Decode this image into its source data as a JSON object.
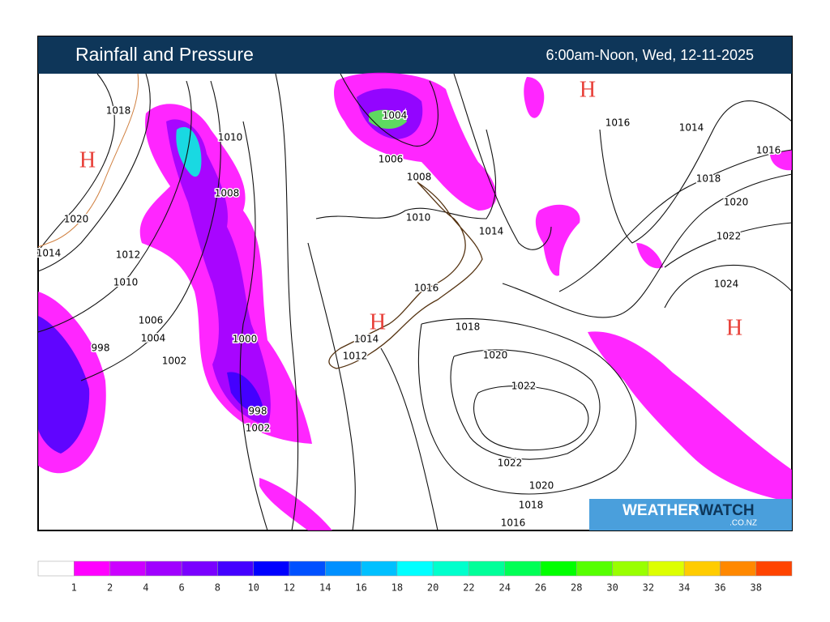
{
  "header": {
    "title": "Rainfall and Pressure",
    "time": "6:00am-Noon, Wed, 12-11-2025"
  },
  "map": {
    "isobar_labels": [
      1018,
      1010,
      1008,
      1020,
      1014,
      1012,
      1010,
      1006,
      1004,
      1002,
      998,
      1000,
      998,
      1002,
      1004,
      1006,
      1008,
      1010,
      1014,
      1016,
      1014,
      1012,
      1018,
      1020,
      1022,
      1022,
      1020,
      1018,
      1016,
      1016,
      1014,
      1016,
      1018,
      1020,
      1022,
      1024
    ],
    "highs": [
      "H",
      "H",
      "H",
      "H"
    ]
  },
  "logo": {
    "brand_a": "WEATHER",
    "brand_b": "WATCH",
    "domain": ".CO.NZ"
  },
  "legend": {
    "colors": [
      "#ffffff",
      "#ff00ff",
      "#cc00ff",
      "#a000ff",
      "#7a00ff",
      "#4400ff",
      "#0000ff",
      "#0050ff",
      "#0090ff",
      "#00c0ff",
      "#00ffff",
      "#00ffcc",
      "#00ff99",
      "#00ff55",
      "#00ff00",
      "#55ff00",
      "#99ff00",
      "#ddff00",
      "#ffcc00",
      "#ff8800",
      "#ff4400"
    ],
    "ticks": [
      1,
      2,
      4,
      6,
      8,
      10,
      12,
      14,
      16,
      18,
      20,
      22,
      24,
      26,
      28,
      30,
      32,
      34,
      36,
      38
    ]
  }
}
